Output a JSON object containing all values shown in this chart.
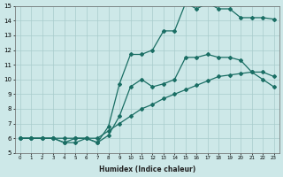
{
  "xlabel": "Humidex (Indice chaleur)",
  "ylabel": "",
  "bg_color": "#cde8e8",
  "grid_color": "#a8cccc",
  "line_color": "#1a6e64",
  "xlim": [
    -0.5,
    23.5
  ],
  "ylim": [
    5,
    15
  ],
  "yticks": [
    5,
    6,
    7,
    8,
    9,
    10,
    11,
    12,
    13,
    14,
    15
  ],
  "xticks": [
    0,
    1,
    2,
    3,
    4,
    5,
    6,
    7,
    8,
    9,
    10,
    11,
    12,
    13,
    14,
    15,
    16,
    17,
    18,
    19,
    20,
    21,
    22,
    23
  ],
  "line1_x": [
    0,
    1,
    2,
    3,
    4,
    5,
    6,
    7,
    8,
    9,
    10,
    11,
    12,
    13,
    14,
    15,
    16,
    17,
    18,
    19,
    20,
    21,
    22,
    23
  ],
  "line1_y": [
    6.0,
    6.0,
    6.0,
    6.0,
    6.0,
    6.0,
    6.0,
    6.0,
    6.5,
    7.0,
    7.5,
    8.0,
    8.3,
    8.7,
    9.0,
    9.3,
    9.6,
    9.9,
    10.2,
    10.3,
    10.4,
    10.5,
    10.5,
    10.2
  ],
  "line2_x": [
    0,
    1,
    2,
    3,
    4,
    5,
    6,
    7,
    8,
    9,
    10,
    11,
    12,
    13,
    14,
    15,
    16,
    17,
    18,
    19,
    20,
    21,
    22,
    23
  ],
  "line2_y": [
    6.0,
    6.0,
    6.0,
    6.0,
    5.7,
    6.0,
    6.0,
    5.7,
    6.2,
    7.5,
    9.5,
    10.0,
    9.5,
    9.7,
    10.0,
    11.5,
    11.5,
    11.7,
    11.5,
    11.5,
    11.3,
    10.5,
    10.0,
    9.5
  ],
  "line3_x": [
    0,
    1,
    2,
    3,
    4,
    5,
    6,
    7,
    8,
    9,
    10,
    11,
    12,
    13,
    14,
    15,
    16,
    17,
    18,
    19,
    20,
    21,
    22,
    23
  ],
  "line3_y": [
    6.0,
    6.0,
    6.0,
    6.0,
    5.7,
    5.7,
    6.0,
    5.7,
    6.8,
    9.7,
    11.7,
    11.7,
    12.0,
    13.3,
    13.3,
    15.2,
    14.8,
    15.2,
    14.8,
    14.8,
    14.2,
    14.2,
    14.2,
    14.1
  ],
  "marker_style": "D",
  "marker_size": 2.0,
  "line_width": 0.9
}
